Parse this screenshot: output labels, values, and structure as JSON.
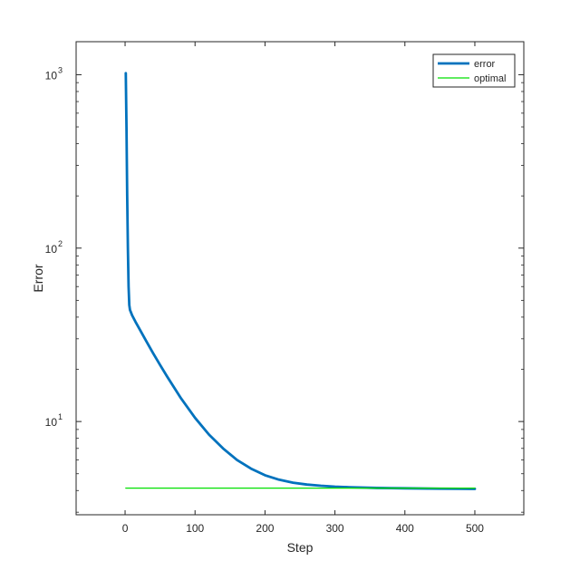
{
  "chart_data": {
    "type": "line",
    "xlabel": "Step",
    "ylabel": "Error",
    "xlim": [
      -70,
      570
    ],
    "ylim": [
      2.9,
      1550
    ],
    "yscale": "log",
    "grid": false,
    "legend_position": "top-right",
    "x_ticks": [
      0,
      100,
      200,
      300,
      400,
      500
    ],
    "x_tick_labels": [
      "0",
      "100",
      "200",
      "300",
      "400",
      "500"
    ],
    "y_ticks": [
      10,
      100,
      1000
    ],
    "y_tick_labels": [
      {
        "base": "10",
        "exp": "1"
      },
      {
        "base": "10",
        "exp": "2"
      },
      {
        "base": "10",
        "exp": "3"
      }
    ],
    "series": [
      {
        "name": "error",
        "color": "#0072BD",
        "x": [
          1,
          2,
          3,
          4,
          5,
          6,
          7,
          8,
          10,
          15,
          20,
          30,
          40,
          50,
          60,
          80,
          100,
          120,
          140,
          160,
          180,
          200,
          220,
          240,
          260,
          280,
          300,
          320,
          340,
          360,
          380,
          400,
          450,
          500
        ],
        "y": [
          1020,
          500,
          200,
          100,
          60,
          47,
          44,
          43,
          41,
          37.5,
          34.5,
          29.2,
          24.8,
          21.2,
          18.2,
          13.6,
          10.5,
          8.4,
          7.0,
          6.0,
          5.35,
          4.9,
          4.62,
          4.44,
          4.33,
          4.26,
          4.21,
          4.18,
          4.16,
          4.14,
          4.13,
          4.12,
          4.1,
          4.09
        ]
      },
      {
        "name": "optimal",
        "color": "#00E000",
        "x": [
          1,
          500
        ],
        "y": [
          4.13,
          4.13
        ]
      }
    ]
  }
}
